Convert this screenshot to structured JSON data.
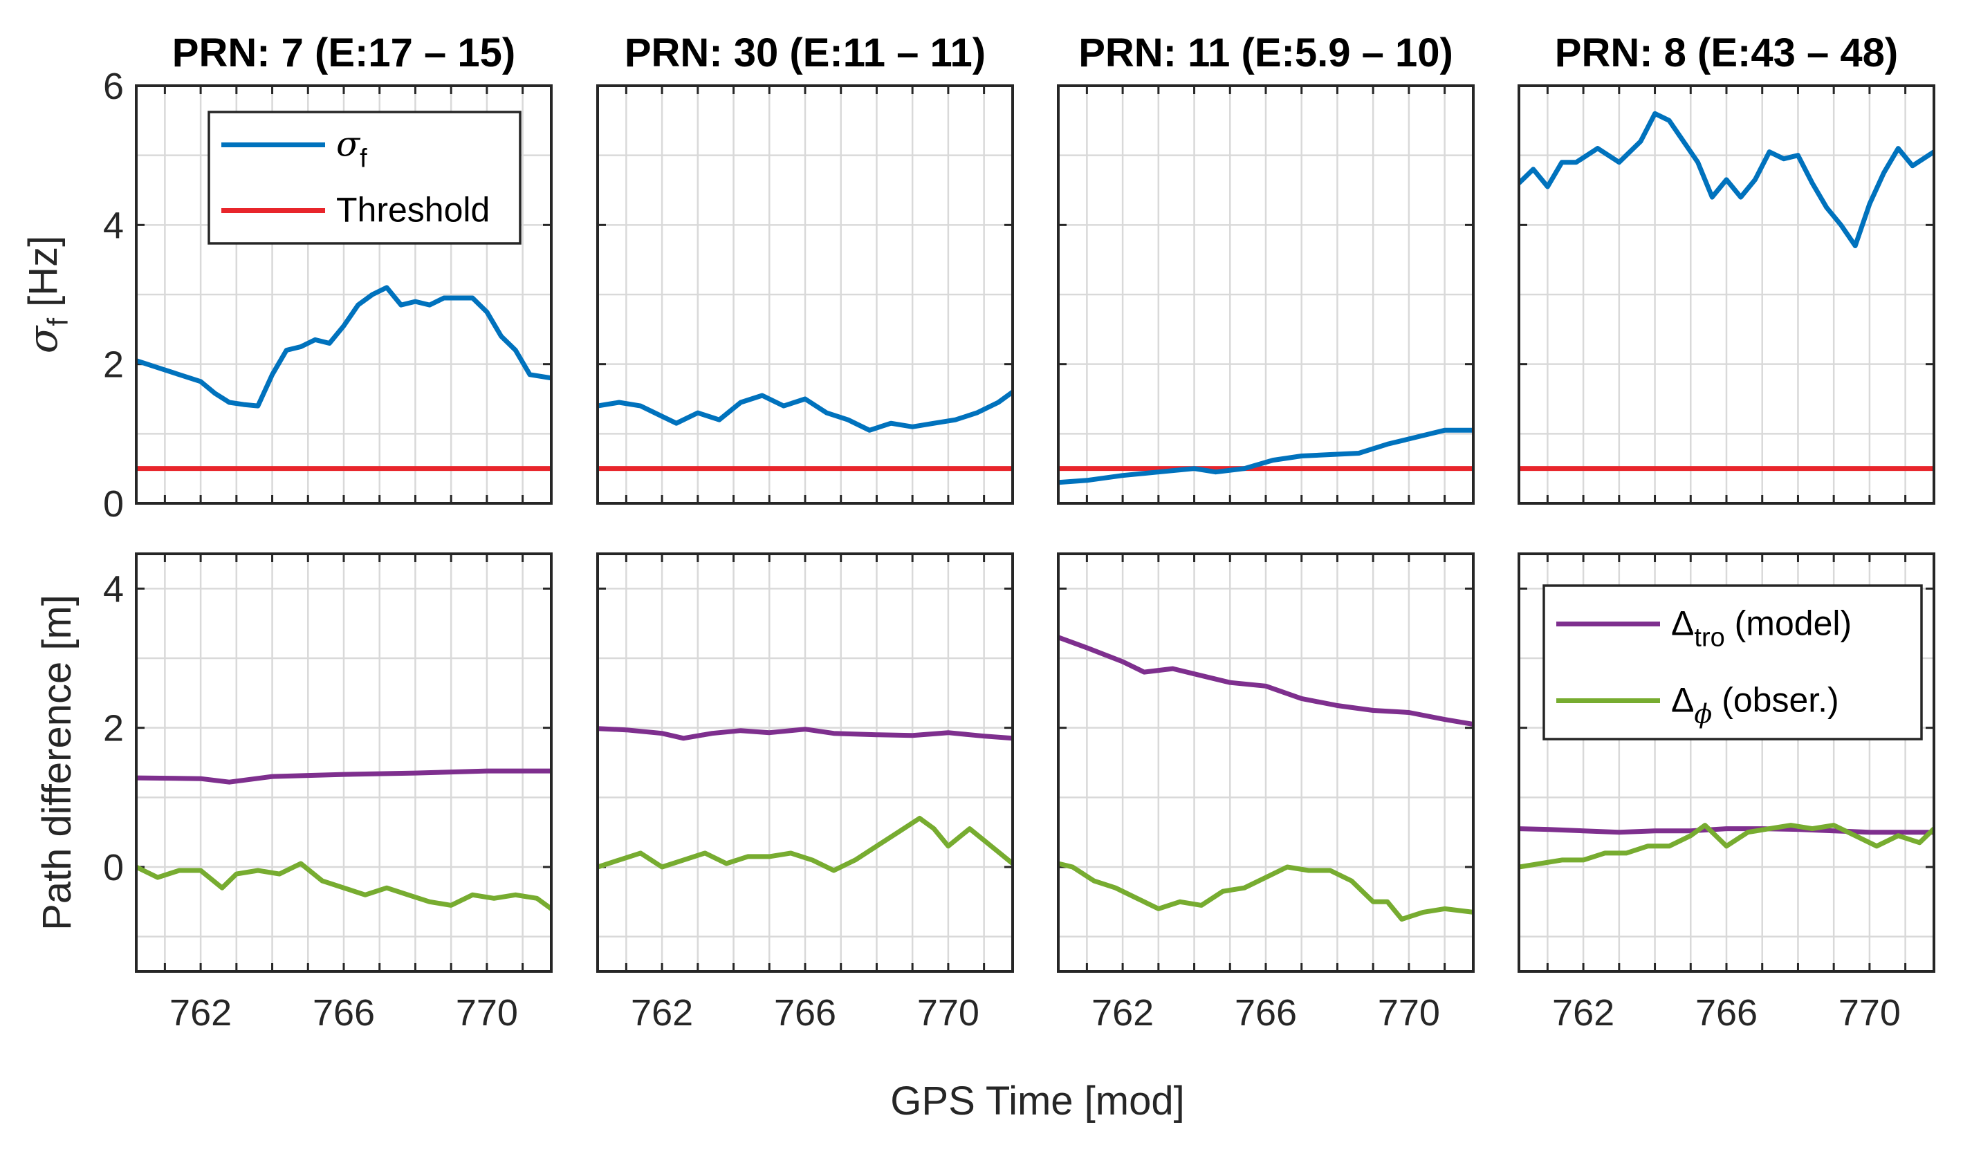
{
  "chart_data": {
    "type": "line",
    "xlabel": "GPS Time [mod]",
    "x_range": [
      760.2,
      771.8
    ],
    "x_ticks": [
      762,
      766,
      770
    ],
    "top_row": {
      "ylabel_symbol": "σ",
      "ylabel_sub": "f",
      "ylabel_unit": "[Hz]",
      "ylim": [
        0,
        6
      ],
      "y_ticks": [
        0,
        2,
        4,
        6
      ],
      "threshold": 0.5,
      "legend": [
        {
          "symbol": "σ",
          "sub": "f",
          "text": "",
          "color": "#0072BD"
        },
        {
          "symbol": "",
          "sub": "",
          "text": "Threshold",
          "color": "#E8252B"
        }
      ]
    },
    "bottom_row": {
      "ylabel": "Path difference [m]",
      "ylim": [
        -1.5,
        4.5
      ],
      "y_ticks": [
        0,
        2,
        4
      ],
      "legend": [
        {
          "symbol": "Δ",
          "sub": "tro",
          "text": "(model)",
          "color": "#7E2F8E"
        },
        {
          "symbol": "Δ",
          "sub": "ϕ",
          "text": "(obser.)",
          "color": "#77AC30"
        }
      ]
    },
    "panels": [
      {
        "title": "PRN: 7 (E:17 – 15)",
        "sigma_f": {
          "x": [
            760.2,
            760.8,
            761.4,
            762,
            762.4,
            762.8,
            763.2,
            763.6,
            764,
            764.4,
            764.8,
            765.2,
            765.6,
            766,
            766.4,
            766.8,
            767.2,
            767.6,
            768,
            768.4,
            768.8,
            769.2,
            769.6,
            770,
            770.4,
            770.8,
            771.2,
            771.8
          ],
          "y": [
            2.05,
            1.95,
            1.85,
            1.75,
            1.58,
            1.45,
            1.42,
            1.4,
            1.85,
            2.2,
            2.25,
            2.35,
            2.3,
            2.55,
            2.85,
            3.0,
            3.1,
            2.85,
            2.9,
            2.85,
            2.95,
            2.95,
            2.95,
            2.75,
            2.4,
            2.2,
            1.85,
            1.8
          ]
        },
        "delta_tro": {
          "x": [
            760.2,
            762,
            762.8,
            764,
            766,
            768,
            770,
            771.8
          ],
          "y": [
            1.28,
            1.27,
            1.22,
            1.3,
            1.33,
            1.35,
            1.38,
            1.38
          ]
        },
        "delta_phi": {
          "x": [
            760.2,
            760.8,
            761.4,
            762,
            762.6,
            763,
            763.6,
            764.2,
            764.8,
            765.4,
            766,
            766.6,
            767.2,
            767.8,
            768.4,
            769,
            769.6,
            770.2,
            770.8,
            771.4,
            771.8
          ],
          "y": [
            0.0,
            -0.15,
            -0.05,
            -0.05,
            -0.3,
            -0.1,
            -0.05,
            -0.1,
            0.05,
            -0.2,
            -0.3,
            -0.4,
            -0.3,
            -0.4,
            -0.5,
            -0.55,
            -0.4,
            -0.45,
            -0.4,
            -0.45,
            -0.6
          ]
        }
      },
      {
        "title": "PRN: 30 (E:11 – 11)",
        "sigma_f": {
          "x": [
            760.2,
            760.8,
            761.4,
            762,
            762.4,
            763,
            763.6,
            764.2,
            764.8,
            765.4,
            766,
            766.6,
            767.2,
            767.8,
            768.4,
            769,
            769.6,
            770.2,
            770.8,
            771.4,
            771.8
          ],
          "y": [
            1.4,
            1.45,
            1.4,
            1.25,
            1.15,
            1.3,
            1.2,
            1.45,
            1.55,
            1.4,
            1.5,
            1.3,
            1.2,
            1.05,
            1.15,
            1.1,
            1.15,
            1.2,
            1.3,
            1.45,
            1.6
          ]
        },
        "delta_tro": {
          "x": [
            760.2,
            761,
            762,
            762.6,
            763.4,
            764.2,
            765,
            766,
            766.8,
            768,
            769,
            770,
            771,
            771.8
          ],
          "y": [
            1.99,
            1.97,
            1.92,
            1.85,
            1.92,
            1.96,
            1.93,
            1.98,
            1.92,
            1.9,
            1.89,
            1.93,
            1.88,
            1.85
          ]
        },
        "delta_phi": {
          "x": [
            760.2,
            760.8,
            761.4,
            762,
            762.6,
            763.2,
            763.8,
            764.4,
            765,
            765.6,
            766.2,
            766.8,
            767.4,
            768,
            768.6,
            769.2,
            769.6,
            770,
            770.6,
            771.2,
            771.8
          ],
          "y": [
            0.0,
            0.1,
            0.2,
            0.0,
            0.1,
            0.2,
            0.05,
            0.15,
            0.15,
            0.2,
            0.1,
            -0.05,
            0.1,
            0.3,
            0.5,
            0.7,
            0.55,
            0.3,
            0.55,
            0.3,
            0.05
          ]
        }
      },
      {
        "title": "PRN: 11 (E:5.9 – 10)",
        "sigma_f": {
          "x": [
            760.2,
            761,
            762,
            763,
            764,
            764.6,
            765.4,
            766.2,
            767,
            767.8,
            768.6,
            769.4,
            770.2,
            771,
            771.8
          ],
          "y": [
            0.3,
            0.33,
            0.4,
            0.45,
            0.5,
            0.45,
            0.5,
            0.62,
            0.68,
            0.7,
            0.72,
            0.85,
            0.95,
            1.05,
            1.05
          ]
        },
        "delta_tro": {
          "x": [
            760.2,
            761,
            762,
            762.6,
            763.4,
            764.2,
            765,
            766,
            767,
            768,
            769,
            770,
            771,
            771.8
          ],
          "y": [
            3.3,
            3.15,
            2.95,
            2.8,
            2.85,
            2.75,
            2.65,
            2.6,
            2.42,
            2.32,
            2.25,
            2.22,
            2.12,
            2.05
          ]
        },
        "delta_phi": {
          "x": [
            760.2,
            760.6,
            761.2,
            761.8,
            762.4,
            763,
            763.6,
            764.2,
            764.8,
            765.4,
            766,
            766.6,
            767.2,
            767.8,
            768.4,
            769,
            769.4,
            769.8,
            770.4,
            771,
            771.8
          ],
          "y": [
            0.05,
            0.0,
            -0.2,
            -0.3,
            -0.45,
            -0.6,
            -0.5,
            -0.55,
            -0.35,
            -0.3,
            -0.15,
            0.0,
            -0.05,
            -0.05,
            -0.2,
            -0.5,
            -0.5,
            -0.75,
            -0.65,
            -0.6,
            -0.65
          ]
        }
      },
      {
        "title": "PRN: 8 (E:43 – 48)",
        "sigma_f": {
          "x": [
            760.2,
            760.6,
            761,
            761.4,
            761.8,
            762.4,
            763,
            763.6,
            764,
            764.4,
            764.8,
            765.2,
            765.6,
            766,
            766.4,
            766.8,
            767.2,
            767.6,
            768,
            768.4,
            768.8,
            769.2,
            769.6,
            770,
            770.4,
            770.8,
            771.2,
            771.8
          ],
          "y": [
            4.6,
            4.8,
            4.55,
            4.9,
            4.9,
            5.1,
            4.9,
            5.2,
            5.6,
            5.5,
            5.2,
            4.9,
            4.4,
            4.65,
            4.4,
            4.65,
            5.05,
            4.95,
            5.0,
            4.6,
            4.25,
            4.0,
            3.7,
            4.3,
            4.75,
            5.1,
            4.85,
            5.05
          ]
        },
        "delta_tro": {
          "x": [
            760.2,
            761,
            762,
            763,
            764,
            765,
            766,
            767,
            768,
            769,
            770,
            771,
            771.8
          ],
          "y": [
            0.55,
            0.54,
            0.52,
            0.5,
            0.52,
            0.52,
            0.55,
            0.55,
            0.54,
            0.52,
            0.5,
            0.5,
            0.5
          ]
        },
        "delta_phi": {
          "x": [
            760.2,
            760.8,
            761.4,
            762,
            762.6,
            763.2,
            763.8,
            764.4,
            765,
            765.4,
            766,
            766.6,
            767.2,
            767.8,
            768.4,
            769,
            769.6,
            770.2,
            770.8,
            771.4,
            771.8
          ],
          "y": [
            0.0,
            0.05,
            0.1,
            0.1,
            0.2,
            0.2,
            0.3,
            0.3,
            0.45,
            0.6,
            0.3,
            0.5,
            0.55,
            0.6,
            0.55,
            0.6,
            0.45,
            0.3,
            0.45,
            0.35,
            0.55
          ]
        }
      }
    ]
  }
}
